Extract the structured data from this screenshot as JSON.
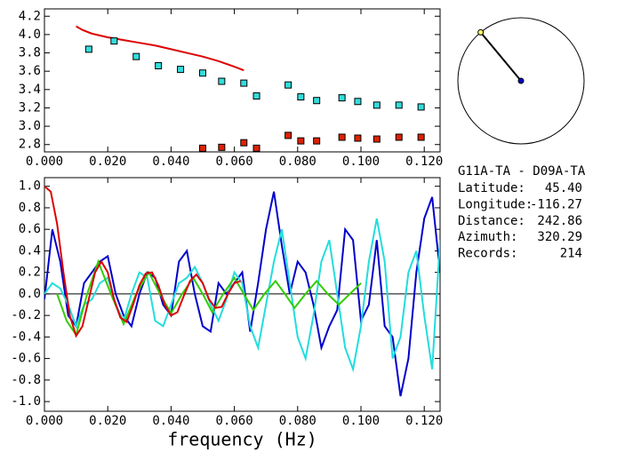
{
  "chart_data": [
    {
      "type": "line",
      "xlim": [
        0,
        0.125
      ],
      "ylim": [
        2.72,
        4.28
      ],
      "xticks": [
        {
          "value": 0,
          "label": "0.000"
        },
        {
          "value": 0.02,
          "label": "0.020"
        },
        {
          "value": 0.04,
          "label": "0.040"
        },
        {
          "value": 0.06,
          "label": "0.060"
        },
        {
          "value": 0.08,
          "label": "0.080"
        },
        {
          "value": 0.1,
          "label": "0.100"
        },
        {
          "value": 0.12,
          "label": "0.120"
        }
      ],
      "yticks": [
        2.8,
        {
          "value": 3,
          "label": "3.0"
        },
        3.2,
        3.4,
        3.6,
        3.8,
        {
          "value": 4,
          "label": "4.0"
        },
        4.2
      ],
      "series": [
        {
          "color": "#dd0000",
          "marker": "none",
          "x": [
            0.01,
            0.012,
            0.015,
            0.02,
            0.025,
            0.03,
            0.035,
            0.04,
            0.045,
            0.05,
            0.055,
            0.06,
            0.063
          ],
          "values": [
            4.09,
            4.05,
            4.01,
            3.97,
            3.94,
            3.91,
            3.88,
            3.84,
            3.8,
            3.76,
            3.71,
            3.65,
            3.61
          ]
        },
        {
          "color": "#33dddd",
          "marker": "square",
          "x": [
            0.014,
            0.022,
            0.029,
            0.036,
            0.043,
            0.05,
            0.056,
            0.063,
            0.067,
            0.077,
            0.081,
            0.086,
            0.094,
            0.099,
            0.105,
            0.112,
            0.119
          ],
          "values": [
            3.84,
            3.93,
            3.76,
            3.66,
            3.62,
            3.58,
            3.49,
            3.47,
            3.33,
            3.45,
            3.32,
            3.28,
            3.31,
            3.27,
            3.23,
            3.23,
            3.21
          ]
        },
        {
          "color": "#dd2200",
          "marker": "square",
          "x": [
            0.05,
            0.056,
            0.063,
            0.067,
            0.077,
            0.081,
            0.086,
            0.094,
            0.099,
            0.105,
            0.112,
            0.119
          ],
          "values": [
            2.76,
            2.77,
            2.82,
            2.76,
            2.9,
            2.84,
            2.84,
            2.88,
            2.87,
            2.86,
            2.88,
            2.88
          ]
        }
      ]
    },
    {
      "type": "line",
      "x_label": "frequency (Hz)",
      "xlim": [
        0,
        0.125
      ],
      "ylim": [
        -1.09,
        1.08
      ],
      "zero_line": 0,
      "xticks": [
        {
          "value": 0,
          "label": "0.000"
        },
        {
          "value": 0.02,
          "label": "0.020"
        },
        {
          "value": 0.04,
          "label": "0.040"
        },
        {
          "value": 0.06,
          "label": "0.060"
        },
        {
          "value": 0.08,
          "label": "0.080"
        },
        {
          "value": 0.1,
          "label": "0.100"
        },
        {
          "value": 0.12,
          "label": "0.120"
        }
      ],
      "yticks": [
        {
          "value": -1,
          "label": "-1.0"
        },
        -0.8,
        -0.6,
        -0.4,
        -0.2,
        {
          "value": 0,
          "label": "0.0"
        },
        0.2,
        0.4,
        0.6,
        0.8,
        {
          "value": 1,
          "label": "1.0"
        }
      ],
      "series": [
        {
          "color": "#0000cc",
          "marker": "none",
          "x": [
            0,
            0.0025,
            0.005,
            0.0075,
            0.01,
            0.0125,
            0.015,
            0.0175,
            0.02,
            0.0225,
            0.025,
            0.0275,
            0.03,
            0.0325,
            0.035,
            0.0375,
            0.04,
            0.0425,
            0.045,
            0.0475,
            0.05,
            0.0525,
            0.055,
            0.0575,
            0.06,
            0.0625,
            0.065,
            0.0675,
            0.07,
            0.0725,
            0.075,
            0.0775,
            0.08,
            0.0825,
            0.085,
            0.0875,
            0.09,
            0.0925,
            0.095,
            0.0975,
            0.1,
            0.1025,
            0.105,
            0.1075,
            0.11,
            0.1125,
            0.115,
            0.1175,
            0.12,
            0.1225,
            0.125
          ],
          "values": [
            -0.05,
            0.6,
            0.3,
            -0.2,
            -0.3,
            0.1,
            0.2,
            0.3,
            0.35,
            0,
            -0.2,
            -0.3,
            0,
            0.2,
            0.15,
            -0.1,
            -0.2,
            0.3,
            0.4,
            0,
            -0.3,
            -0.35,
            0.1,
            0,
            0.1,
            0.2,
            -0.35,
            0.1,
            0.6,
            0.95,
            0.45,
            0,
            0.3,
            0.2,
            -0.1,
            -0.5,
            -0.3,
            -0.15,
            0.6,
            0.5,
            -0.25,
            -0.1,
            0.5,
            -0.3,
            -0.4,
            -0.95,
            -0.6,
            0.2,
            0.7,
            0.9,
            0.2
          ]
        },
        {
          "color": "#22dddd",
          "marker": "none",
          "x": [
            0,
            0.0025,
            0.005,
            0.0075,
            0.01,
            0.0125,
            0.015,
            0.0175,
            0.02,
            0.0225,
            0.025,
            0.0275,
            0.03,
            0.0325,
            0.035,
            0.0375,
            0.04,
            0.0425,
            0.045,
            0.0475,
            0.05,
            0.0525,
            0.055,
            0.0575,
            0.06,
            0.0625,
            0.065,
            0.0675,
            0.07,
            0.0725,
            0.075,
            0.0775,
            0.08,
            0.0825,
            0.085,
            0.0875,
            0.09,
            0.0925,
            0.095,
            0.0975,
            0.1,
            0.1025,
            0.105,
            0.1075,
            0.11,
            0.1125,
            0.115,
            0.1175,
            0.12,
            0.1225,
            0.125
          ],
          "values": [
            0,
            0.1,
            0.05,
            -0.1,
            -0.3,
            -0.1,
            -0.05,
            0.1,
            0.15,
            -0.1,
            -0.25,
            0,
            0.2,
            0.15,
            -0.25,
            -0.3,
            -0.1,
            0.1,
            0.15,
            0.25,
            0.1,
            -0.1,
            -0.25,
            -0.05,
            0.2,
            0.1,
            -0.3,
            -0.5,
            -0.1,
            0.3,
            0.6,
            0.1,
            -0.4,
            -0.6,
            -0.2,
            0.3,
            0.5,
            0,
            -0.5,
            -0.7,
            -0.3,
            0.3,
            0.7,
            0.3,
            -0.6,
            -0.4,
            0.2,
            0.4,
            -0.2,
            -0.7,
            0.5
          ]
        },
        {
          "color": "#33cc00",
          "marker": "none",
          "x": [
            0.004,
            0.007,
            0.01,
            0.0135,
            0.017,
            0.021,
            0.025,
            0.029,
            0.033,
            0.0365,
            0.04,
            0.0435,
            0.047,
            0.05,
            0.053,
            0.0565,
            0.06,
            0.063,
            0.066,
            0.0695,
            0.073,
            0.076,
            0.079,
            0.0825,
            0.086,
            0.0895,
            0.093,
            0.0965,
            0.1
          ],
          "values": [
            0,
            -0.25,
            -0.38,
            0,
            0.3,
            0,
            -0.28,
            0,
            0.2,
            0,
            -0.18,
            0,
            0.15,
            0,
            -0.17,
            0,
            0.15,
            0,
            -0.15,
            0,
            0.12,
            0,
            -0.13,
            0,
            0.12,
            0,
            -0.1,
            0,
            0.1
          ]
        },
        {
          "color": "#dd0000",
          "marker": "none",
          "x": [
            0,
            0.002,
            0.004,
            0.006,
            0.008,
            0.01,
            0.012,
            0.014,
            0.016,
            0.018,
            0.02,
            0.022,
            0.024,
            0.026,
            0.028,
            0.03,
            0.032,
            0.034,
            0.036,
            0.038,
            0.04,
            0.042,
            0.044,
            0.046,
            0.048,
            0.05,
            0.052,
            0.054,
            0.056,
            0.058,
            0.06,
            0.062
          ],
          "values": [
            1,
            0.95,
            0.65,
            0.2,
            -0.2,
            -0.39,
            -0.3,
            -0.05,
            0.2,
            0.3,
            0.2,
            -0.05,
            -0.22,
            -0.26,
            -0.1,
            0.08,
            0.19,
            0.2,
            0.08,
            -0.1,
            -0.2,
            -0.17,
            -0.02,
            0.12,
            0.18,
            0.1,
            -0.05,
            -0.13,
            -0.12,
            0,
            0.1,
            0.12
          ]
        }
      ]
    }
  ],
  "station": {
    "title": "G11A-TA - D09A-TA",
    "rows": [
      [
        "Latitude:",
        "45.40"
      ],
      [
        "Longitude:",
        "-116.27"
      ],
      [
        "Distance:",
        "242.86"
      ],
      [
        "Azimuth:",
        "320.29"
      ],
      [
        "Records:",
        "214"
      ]
    ]
  }
}
